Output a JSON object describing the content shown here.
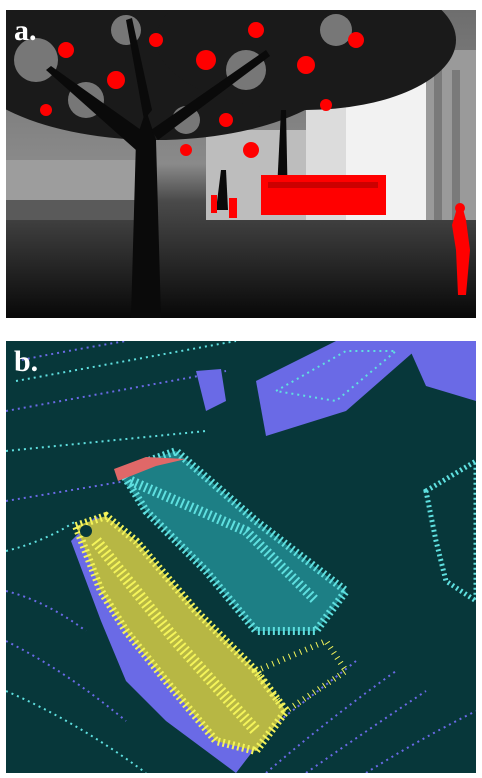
{
  "panels": [
    {
      "label": "a.",
      "content": "depth-image",
      "colors": {
        "highlight": "#ff0000",
        "sky": "#ffffff",
        "ground": "#111111",
        "tree": "#0d0d0d"
      }
    },
    {
      "label": "b.",
      "content": "point-cloud",
      "colors": {
        "background": "#07373a",
        "class_blue": "#6a6ae6",
        "class_cyan": "#5fe0e0",
        "class_yellow": "#f4f45a",
        "class_red": "#e06868"
      }
    }
  ]
}
